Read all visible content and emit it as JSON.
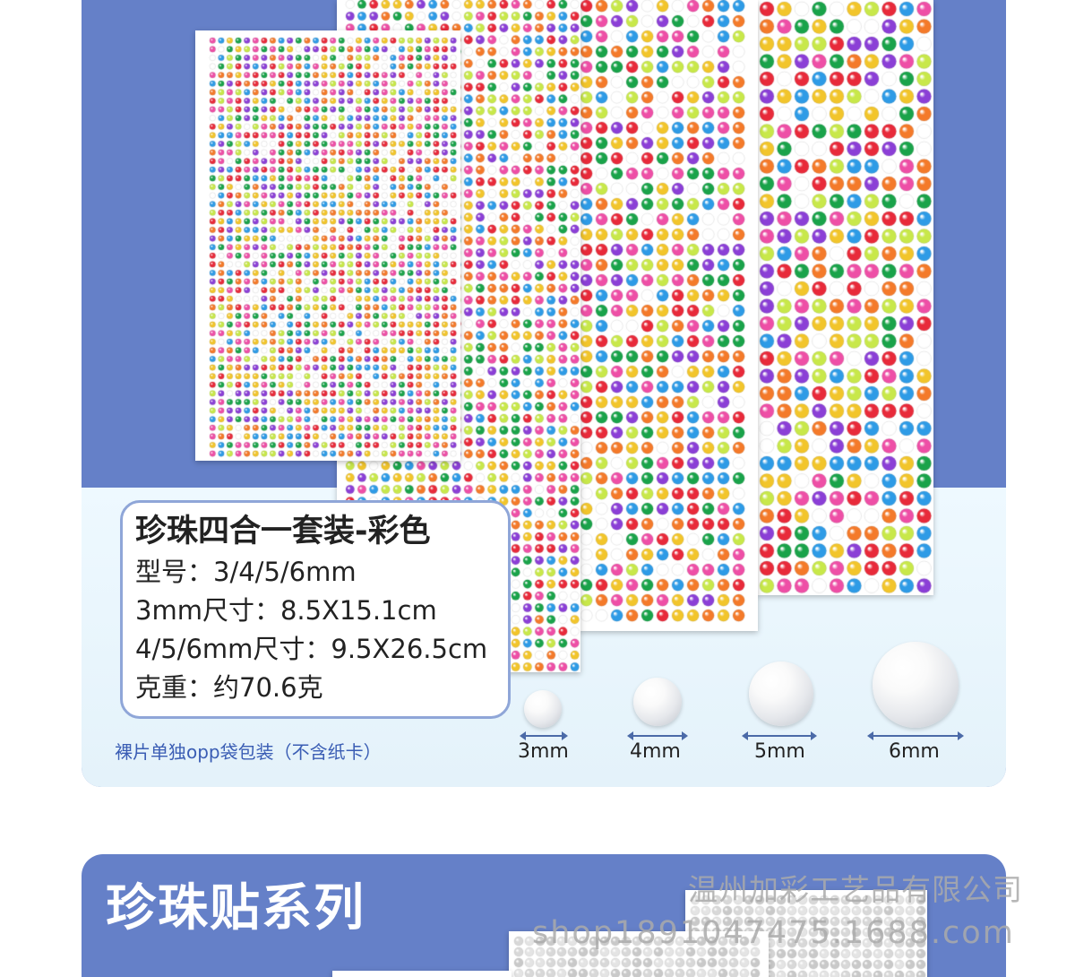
{
  "product": {
    "title": "珍珠四合一套装-彩色",
    "model_line": "型号：3/4/5/6mm",
    "size_3mm_line": "3mm尺寸：8.5X15.1cm",
    "size_456mm_line": "4/5/6mm尺寸：9.5X26.5cm",
    "weight_line": "克重：约70.6克",
    "packaging_note": "裸片单独opp袋包装（不含纸卡）"
  },
  "pearl_sizes": [
    {
      "label": "3mm"
    },
    {
      "label": "4mm"
    },
    {
      "label": "5mm"
    },
    {
      "label": "6mm"
    }
  ],
  "series": {
    "title": "珍珠贴系列"
  },
  "watermark": {
    "company": "温州加彩工艺品有限公司",
    "shop": "shop1891047475.1688.com"
  },
  "colors": {
    "panel_blue": "#6580c8",
    "light_area": "#eef9ff",
    "card_border": "#8fa6d8",
    "note_blue": "#3a5db4",
    "pearl_palette": [
      "#e82a3a",
      "#f2c52b",
      "#1aa34a",
      "#8b3fd6",
      "#ee4fa6",
      "#2e9be6",
      "#ffffff",
      "#f47a2a",
      "#c8e84a"
    ]
  }
}
